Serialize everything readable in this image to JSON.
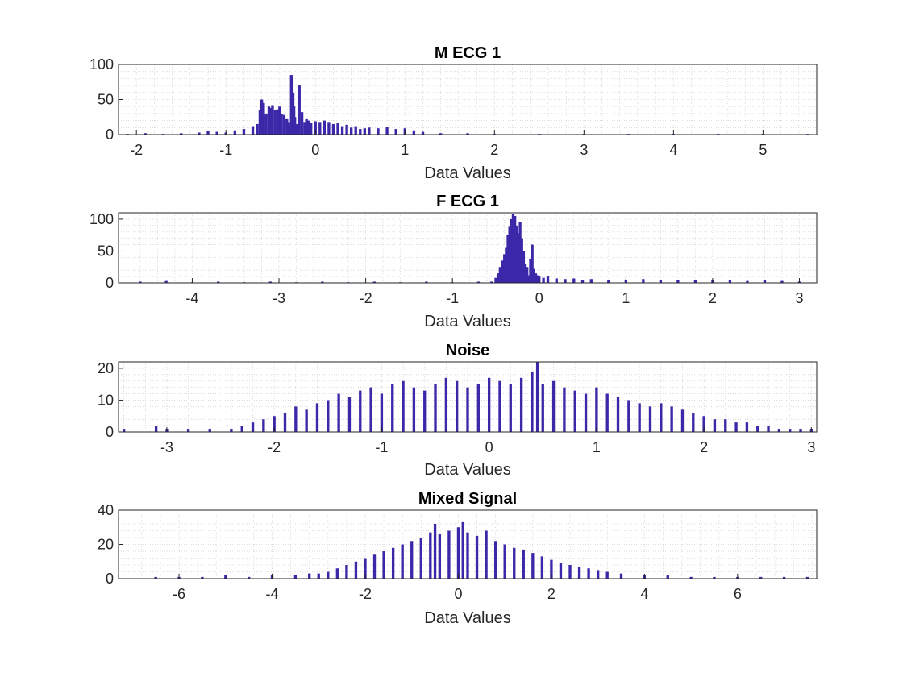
{
  "colors": {
    "bar": "#3a28a8",
    "axis": "#262626",
    "grid": "#d4d4d4",
    "background": "#ffffff"
  },
  "chart_data": [
    {
      "type": "bar",
      "subtype": "histogram",
      "title": "M ECG 1",
      "xlabel": "Data Values",
      "ylabel": "",
      "xlim": [
        -2.2,
        5.6
      ],
      "ylim": [
        0,
        100
      ],
      "xticks": [
        -2,
        -1,
        0,
        1,
        2,
        3,
        4,
        5
      ],
      "yticks": [
        0,
        50,
        100
      ],
      "grid": true,
      "bins": {
        "x": [
          -2.1,
          -1.9,
          -1.7,
          -1.5,
          -1.3,
          -1.2,
          -1.1,
          -1.0,
          -0.9,
          -0.8,
          -0.7,
          -0.65,
          -0.62,
          -0.6,
          -0.58,
          -0.55,
          -0.52,
          -0.5,
          -0.48,
          -0.45,
          -0.42,
          -0.4,
          -0.38,
          -0.35,
          -0.32,
          -0.3,
          -0.28,
          -0.27,
          -0.26,
          -0.25,
          -0.24,
          -0.23,
          -0.22,
          -0.2,
          -0.18,
          -0.15,
          -0.12,
          -0.1,
          -0.08,
          -0.05,
          0.0,
          0.05,
          0.1,
          0.15,
          0.2,
          0.25,
          0.3,
          0.35,
          0.4,
          0.45,
          0.5,
          0.55,
          0.6,
          0.7,
          0.8,
          0.9,
          1.0,
          1.1,
          1.2,
          1.4,
          1.7,
          2.0,
          2.5,
          3.0,
          3.5,
          4.0,
          4.5,
          5.0,
          5.5
        ],
        "counts": [
          1,
          2,
          1,
          2,
          3,
          5,
          4,
          3,
          6,
          8,
          12,
          15,
          35,
          50,
          45,
          30,
          40,
          38,
          42,
          35,
          36,
          40,
          30,
          28,
          22,
          18,
          12,
          85,
          82,
          60,
          40,
          25,
          14,
          15,
          70,
          32,
          18,
          22,
          20,
          17,
          19,
          18,
          20,
          18,
          15,
          16,
          12,
          14,
          10,
          12,
          8,
          9,
          10,
          9,
          11,
          8,
          9,
          6,
          4,
          2,
          2,
          1,
          1,
          1,
          1,
          1,
          1,
          1,
          1
        ]
      }
    },
    {
      "type": "bar",
      "subtype": "histogram",
      "title": "F ECG 1",
      "xlabel": "Data Values",
      "ylabel": "",
      "xlim": [
        -4.85,
        3.2
      ],
      "ylim": [
        0,
        110
      ],
      "xticks": [
        -4,
        -3,
        -2,
        -1,
        0,
        1,
        2,
        3
      ],
      "yticks": [
        0,
        50,
        100
      ],
      "grid": true,
      "bins": {
        "x": [
          -4.6,
          -4.3,
          -4.0,
          -3.7,
          -3.4,
          -3.1,
          -2.8,
          -2.5,
          -2.2,
          -1.9,
          -1.6,
          -1.3,
          -1.0,
          -0.7,
          -0.55,
          -0.5,
          -0.47,
          -0.45,
          -0.42,
          -0.4,
          -0.38,
          -0.36,
          -0.34,
          -0.32,
          -0.3,
          -0.28,
          -0.26,
          -0.24,
          -0.22,
          -0.2,
          -0.18,
          -0.16,
          -0.14,
          -0.12,
          -0.1,
          -0.08,
          -0.06,
          -0.04,
          -0.02,
          0.0,
          0.05,
          0.1,
          0.2,
          0.3,
          0.4,
          0.5,
          0.6,
          0.8,
          1.0,
          1.2,
          1.4,
          1.6,
          1.8,
          2.0,
          2.2,
          2.4,
          2.6,
          2.8,
          3.0
        ],
        "counts": [
          2,
          3,
          1,
          2,
          1,
          2,
          1,
          2,
          1,
          2,
          1,
          2,
          1,
          2,
          2,
          8,
          15,
          25,
          35,
          45,
          55,
          75,
          88,
          100,
          108,
          105,
          90,
          78,
          95,
          70,
          50,
          30,
          25,
          12,
          38,
          60,
          22,
          15,
          12,
          10,
          8,
          10,
          7,
          6,
          7,
          5,
          6,
          4,
          5,
          6,
          4,
          5,
          4,
          5,
          4,
          3,
          4,
          3,
          2
        ]
      }
    },
    {
      "type": "bar",
      "subtype": "histogram",
      "title": "Noise",
      "xlabel": "Data Values",
      "ylabel": "",
      "xlim": [
        -3.45,
        3.05
      ],
      "ylim": [
        0,
        22
      ],
      "xticks": [
        -3,
        -2,
        -1,
        0,
        1,
        2,
        3
      ],
      "yticks": [
        0,
        10,
        20
      ],
      "grid": true,
      "bins": {
        "x": [
          -3.4,
          -3.1,
          -3.0,
          -2.8,
          -2.6,
          -2.4,
          -2.3,
          -2.2,
          -2.1,
          -2.0,
          -1.9,
          -1.8,
          -1.7,
          -1.6,
          -1.5,
          -1.4,
          -1.3,
          -1.2,
          -1.1,
          -1.0,
          -0.9,
          -0.8,
          -0.7,
          -0.6,
          -0.5,
          -0.4,
          -0.3,
          -0.2,
          -0.1,
          0.0,
          0.1,
          0.2,
          0.3,
          0.4,
          0.45,
          0.5,
          0.6,
          0.7,
          0.8,
          0.9,
          1.0,
          1.1,
          1.2,
          1.3,
          1.4,
          1.5,
          1.6,
          1.7,
          1.8,
          1.9,
          2.0,
          2.1,
          2.2,
          2.3,
          2.4,
          2.5,
          2.6,
          2.7,
          2.8,
          2.9,
          3.0
        ],
        "counts": [
          1,
          2,
          1,
          1,
          1,
          1,
          2,
          3,
          4,
          5,
          6,
          8,
          7,
          9,
          10,
          12,
          11,
          13,
          14,
          12,
          15,
          16,
          14,
          13,
          15,
          17,
          16,
          14,
          15,
          17,
          16,
          15,
          17,
          19,
          22,
          15,
          16,
          14,
          13,
          12,
          14,
          12,
          11,
          10,
          9,
          8,
          9,
          8,
          7,
          6,
          5,
          4,
          4,
          3,
          3,
          2,
          2,
          1,
          1,
          1,
          1
        ]
      }
    },
    {
      "type": "bar",
      "subtype": "histogram",
      "title": "Mixed Signal",
      "xlabel": "Data Values",
      "ylabel": "",
      "xlim": [
        -7.3,
        7.7
      ],
      "ylim": [
        0,
        40
      ],
      "xticks": [
        -6,
        -4,
        -2,
        0,
        2,
        4,
        6
      ],
      "yticks": [
        0,
        20,
        40
      ],
      "grid": true,
      "bins": {
        "x": [
          -6.5,
          -6.0,
          -5.5,
          -5.0,
          -4.5,
          -4.0,
          -3.5,
          -3.2,
          -3.0,
          -2.8,
          -2.6,
          -2.4,
          -2.2,
          -2.0,
          -1.8,
          -1.6,
          -1.4,
          -1.2,
          -1.0,
          -0.8,
          -0.6,
          -0.5,
          -0.4,
          -0.2,
          0.0,
          0.1,
          0.2,
          0.4,
          0.6,
          0.8,
          1.0,
          1.2,
          1.4,
          1.6,
          1.8,
          2.0,
          2.2,
          2.4,
          2.6,
          2.8,
          3.0,
          3.2,
          3.5,
          4.0,
          4.5,
          5.0,
          5.5,
          6.0,
          6.5,
          7.0,
          7.5
        ],
        "counts": [
          1,
          1,
          1,
          2,
          1,
          2,
          2,
          3,
          3,
          4,
          6,
          8,
          10,
          12,
          14,
          16,
          18,
          20,
          22,
          24,
          27,
          32,
          26,
          28,
          30,
          33,
          27,
          25,
          28,
          22,
          20,
          18,
          17,
          15,
          13,
          11,
          9,
          8,
          7,
          6,
          5,
          4,
          3,
          2,
          2,
          1,
          1,
          1,
          1,
          1,
          1
        ]
      }
    }
  ]
}
